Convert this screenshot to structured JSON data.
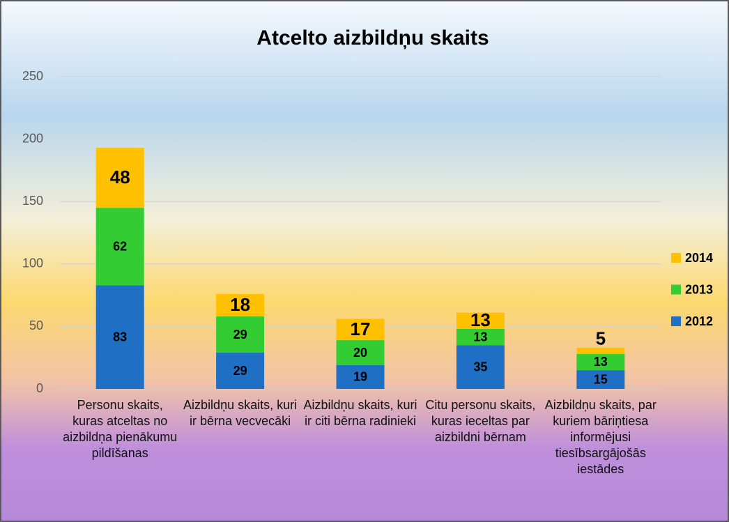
{
  "chart_data": {
    "type": "stacked_bar",
    "title": "Atcelto aizbildņu skaits",
    "categories": [
      "Personu skaits, kuras atceltas no aizbildņa pienākumu pildīšanas",
      "Aizbildņu skaits, kuri ir bērna vecvecāki",
      "Aizbildņu skaits, kuri ir citi bērna radinieki",
      "Citu personu skaits, kuras ieceltas par aizbildni bērnam",
      "Aizbildņu skaits, par kuriem bāriņtiesa informējusi tiesībsargājošās iestādes"
    ],
    "series": [
      {
        "name": "2012",
        "color": "#1f6fc5",
        "values": [
          83,
          29,
          19,
          35,
          15
        ]
      },
      {
        "name": "2013",
        "color": "#33cc33",
        "values": [
          62,
          29,
          20,
          13,
          13
        ]
      },
      {
        "name": "2014",
        "color": "#ffc000",
        "values": [
          48,
          18,
          17,
          13,
          5
        ]
      }
    ],
    "ylim": [
      0,
      250
    ],
    "yticks": [
      0,
      50,
      100,
      150,
      200,
      250
    ],
    "grid": true,
    "legend": "right"
  }
}
